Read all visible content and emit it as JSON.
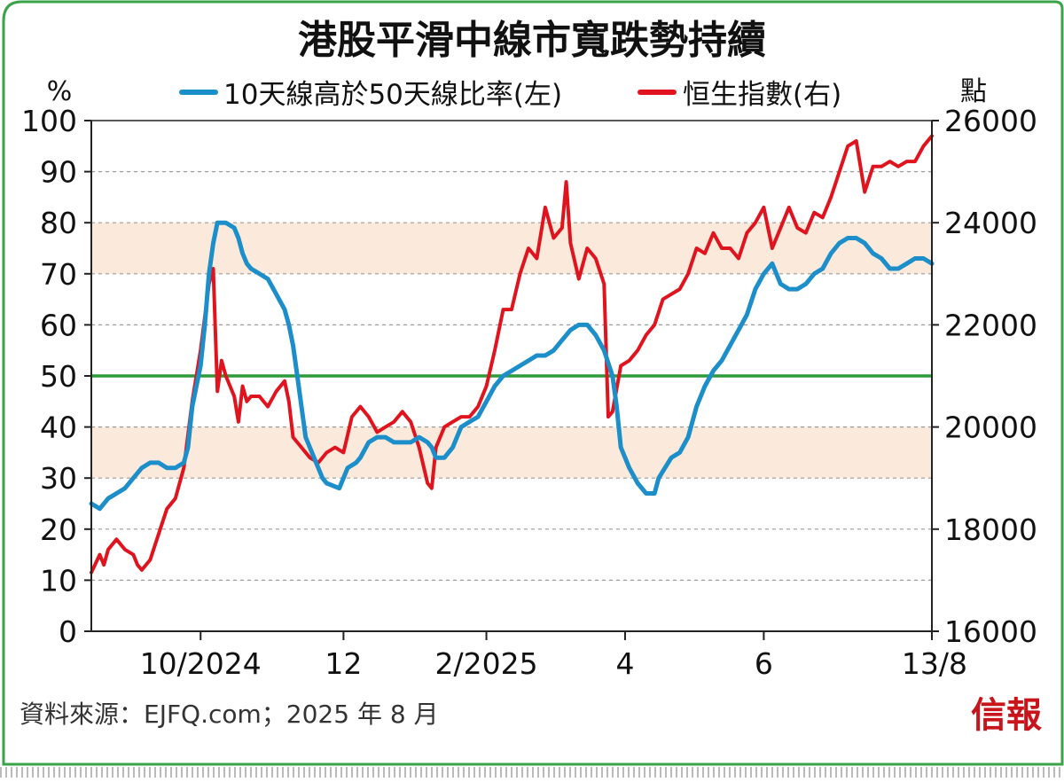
{
  "chart_data": {
    "type": "line",
    "title": "港股平滑中線市寬跌勢持續",
    "left_unit": "%",
    "right_unit": "點",
    "ylim_left": [
      0,
      100
    ],
    "ylim_right": [
      16000,
      26000
    ],
    "yticks_left": [
      "0",
      "10",
      "20",
      "30",
      "40",
      "50",
      "60",
      "70",
      "80",
      "90",
      "100"
    ],
    "yticks_right": [
      "16000",
      "18000",
      "20000",
      "22000",
      "24000",
      "26000"
    ],
    "xticks": [
      {
        "label": "10/2024",
        "t": 0.13
      },
      {
        "label": "12",
        "t": 0.3
      },
      {
        "label": "2/2025",
        "t": 0.47
      },
      {
        "label": "4",
        "t": 0.635
      },
      {
        "label": "6",
        "t": 0.8
      },
      {
        "label": "13/8",
        "t": 1.0
      }
    ],
    "shaded_bands": [
      [
        30,
        40
      ],
      [
        70,
        80
      ]
    ],
    "reference_line": 50,
    "series": [
      {
        "name": "10天線高於50天線比率(左)",
        "axis": "left",
        "color": "#1c8ec9",
        "points": [
          [
            0.0,
            25
          ],
          [
            0.01,
            24
          ],
          [
            0.02,
            26
          ],
          [
            0.03,
            27
          ],
          [
            0.04,
            28
          ],
          [
            0.05,
            30
          ],
          [
            0.06,
            32
          ],
          [
            0.07,
            33
          ],
          [
            0.08,
            33
          ],
          [
            0.09,
            32
          ],
          [
            0.1,
            32
          ],
          [
            0.11,
            33
          ],
          [
            0.115,
            36
          ],
          [
            0.12,
            44
          ],
          [
            0.13,
            52
          ],
          [
            0.135,
            60
          ],
          [
            0.14,
            70
          ],
          [
            0.145,
            76
          ],
          [
            0.15,
            80
          ],
          [
            0.16,
            80
          ],
          [
            0.17,
            79
          ],
          [
            0.175,
            77
          ],
          [
            0.18,
            74
          ],
          [
            0.185,
            72
          ],
          [
            0.19,
            71
          ],
          [
            0.2,
            70
          ],
          [
            0.21,
            69
          ],
          [
            0.22,
            66
          ],
          [
            0.23,
            63
          ],
          [
            0.235,
            60
          ],
          [
            0.24,
            56
          ],
          [
            0.245,
            50
          ],
          [
            0.25,
            44
          ],
          [
            0.255,
            38
          ],
          [
            0.265,
            34
          ],
          [
            0.275,
            30
          ],
          [
            0.28,
            29
          ],
          [
            0.295,
            28
          ],
          [
            0.305,
            32
          ],
          [
            0.315,
            33
          ],
          [
            0.32,
            34
          ],
          [
            0.33,
            37
          ],
          [
            0.34,
            38
          ],
          [
            0.35,
            38
          ],
          [
            0.36,
            37
          ],
          [
            0.37,
            37
          ],
          [
            0.38,
            37
          ],
          [
            0.39,
            38
          ],
          [
            0.4,
            37
          ],
          [
            0.405,
            36
          ],
          [
            0.41,
            34
          ],
          [
            0.42,
            34
          ],
          [
            0.43,
            36
          ],
          [
            0.44,
            40
          ],
          [
            0.45,
            41
          ],
          [
            0.46,
            42
          ],
          [
            0.47,
            45
          ],
          [
            0.48,
            48
          ],
          [
            0.49,
            50
          ],
          [
            0.5,
            51
          ],
          [
            0.51,
            52
          ],
          [
            0.52,
            53
          ],
          [
            0.53,
            54
          ],
          [
            0.54,
            54
          ],
          [
            0.55,
            55
          ],
          [
            0.56,
            57
          ],
          [
            0.57,
            59
          ],
          [
            0.58,
            60
          ],
          [
            0.59,
            60
          ],
          [
            0.6,
            58
          ],
          [
            0.61,
            55
          ],
          [
            0.62,
            50
          ],
          [
            0.625,
            44
          ],
          [
            0.63,
            36
          ],
          [
            0.64,
            32
          ],
          [
            0.65,
            29
          ],
          [
            0.66,
            27
          ],
          [
            0.67,
            27
          ],
          [
            0.675,
            30
          ],
          [
            0.69,
            34
          ],
          [
            0.7,
            35
          ],
          [
            0.71,
            38
          ],
          [
            0.72,
            44
          ],
          [
            0.73,
            48
          ],
          [
            0.74,
            51
          ],
          [
            0.75,
            53
          ],
          [
            0.76,
            56
          ],
          [
            0.77,
            59
          ],
          [
            0.78,
            62
          ],
          [
            0.79,
            67
          ],
          [
            0.8,
            70
          ],
          [
            0.81,
            72
          ],
          [
            0.82,
            68
          ],
          [
            0.83,
            67
          ],
          [
            0.84,
            67
          ],
          [
            0.85,
            68
          ],
          [
            0.86,
            70
          ],
          [
            0.87,
            71
          ],
          [
            0.88,
            74
          ],
          [
            0.89,
            76
          ],
          [
            0.9,
            77
          ],
          [
            0.91,
            77
          ],
          [
            0.92,
            76
          ],
          [
            0.93,
            74
          ],
          [
            0.94,
            73
          ],
          [
            0.95,
            71
          ],
          [
            0.96,
            71
          ],
          [
            0.97,
            72
          ],
          [
            0.98,
            73
          ],
          [
            0.99,
            73
          ],
          [
            1.0,
            72
          ]
        ]
      },
      {
        "name": "恒生指數(右)",
        "axis": "right",
        "color": "#e0141e",
        "points": [
          [
            0.0,
            17150
          ],
          [
            0.01,
            17500
          ],
          [
            0.015,
            17300
          ],
          [
            0.02,
            17600
          ],
          [
            0.03,
            17800
          ],
          [
            0.04,
            17600
          ],
          [
            0.05,
            17500
          ],
          [
            0.055,
            17300
          ],
          [
            0.06,
            17200
          ],
          [
            0.07,
            17400
          ],
          [
            0.08,
            17900
          ],
          [
            0.09,
            18400
          ],
          [
            0.1,
            18600
          ],
          [
            0.11,
            19200
          ],
          [
            0.12,
            20500
          ],
          [
            0.13,
            21500
          ],
          [
            0.14,
            22800
          ],
          [
            0.145,
            23100
          ],
          [
            0.15,
            20700
          ],
          [
            0.155,
            21300
          ],
          [
            0.16,
            21000
          ],
          [
            0.17,
            20600
          ],
          [
            0.175,
            20100
          ],
          [
            0.18,
            20800
          ],
          [
            0.185,
            20500
          ],
          [
            0.19,
            20600
          ],
          [
            0.2,
            20600
          ],
          [
            0.21,
            20400
          ],
          [
            0.22,
            20700
          ],
          [
            0.23,
            20900
          ],
          [
            0.235,
            20500
          ],
          [
            0.24,
            19800
          ],
          [
            0.25,
            19600
          ],
          [
            0.26,
            19400
          ],
          [
            0.27,
            19300
          ],
          [
            0.28,
            19500
          ],
          [
            0.29,
            19600
          ],
          [
            0.3,
            19500
          ],
          [
            0.31,
            20200
          ],
          [
            0.32,
            20400
          ],
          [
            0.33,
            20200
          ],
          [
            0.34,
            19900
          ],
          [
            0.35,
            20000
          ],
          [
            0.36,
            20100
          ],
          [
            0.37,
            20300
          ],
          [
            0.38,
            20100
          ],
          [
            0.39,
            19600
          ],
          [
            0.4,
            18900
          ],
          [
            0.405,
            18800
          ],
          [
            0.41,
            19600
          ],
          [
            0.42,
            20000
          ],
          [
            0.43,
            20100
          ],
          [
            0.44,
            20200
          ],
          [
            0.45,
            20200
          ],
          [
            0.46,
            20400
          ],
          [
            0.47,
            20800
          ],
          [
            0.48,
            21500
          ],
          [
            0.49,
            22300
          ],
          [
            0.5,
            22300
          ],
          [
            0.51,
            23000
          ],
          [
            0.52,
            23500
          ],
          [
            0.53,
            23300
          ],
          [
            0.54,
            24300
          ],
          [
            0.55,
            23700
          ],
          [
            0.56,
            23900
          ],
          [
            0.565,
            24800
          ],
          [
            0.57,
            23600
          ],
          [
            0.58,
            22900
          ],
          [
            0.59,
            23500
          ],
          [
            0.6,
            23300
          ],
          [
            0.61,
            22800
          ],
          [
            0.615,
            20200
          ],
          [
            0.62,
            20300
          ],
          [
            0.63,
            21200
          ],
          [
            0.64,
            21300
          ],
          [
            0.65,
            21500
          ],
          [
            0.66,
            21800
          ],
          [
            0.67,
            22000
          ],
          [
            0.68,
            22500
          ],
          [
            0.69,
            22600
          ],
          [
            0.7,
            22700
          ],
          [
            0.71,
            23000
          ],
          [
            0.72,
            23500
          ],
          [
            0.73,
            23400
          ],
          [
            0.74,
            23800
          ],
          [
            0.75,
            23500
          ],
          [
            0.76,
            23500
          ],
          [
            0.77,
            23300
          ],
          [
            0.78,
            23800
          ],
          [
            0.79,
            24000
          ],
          [
            0.8,
            24300
          ],
          [
            0.81,
            23500
          ],
          [
            0.82,
            23900
          ],
          [
            0.83,
            24300
          ],
          [
            0.84,
            23900
          ],
          [
            0.85,
            23800
          ],
          [
            0.86,
            24200
          ],
          [
            0.87,
            24100
          ],
          [
            0.88,
            24500
          ],
          [
            0.89,
            25000
          ],
          [
            0.9,
            25500
          ],
          [
            0.91,
            25600
          ],
          [
            0.92,
            24600
          ],
          [
            0.93,
            25100
          ],
          [
            0.94,
            25100
          ],
          [
            0.95,
            25200
          ],
          [
            0.96,
            25100
          ],
          [
            0.97,
            25200
          ],
          [
            0.98,
            25200
          ],
          [
            0.99,
            25500
          ],
          [
            1.0,
            25700
          ]
        ]
      }
    ]
  },
  "footer": {
    "source": "資料來源：EJFQ.com；2025 年 8 月",
    "logo_text": "信報"
  },
  "colors": {
    "frame": "#3aa34a",
    "band": "#fbeadb",
    "ref_line": "#2e9b3a",
    "grid": "#9a9a9a"
  }
}
